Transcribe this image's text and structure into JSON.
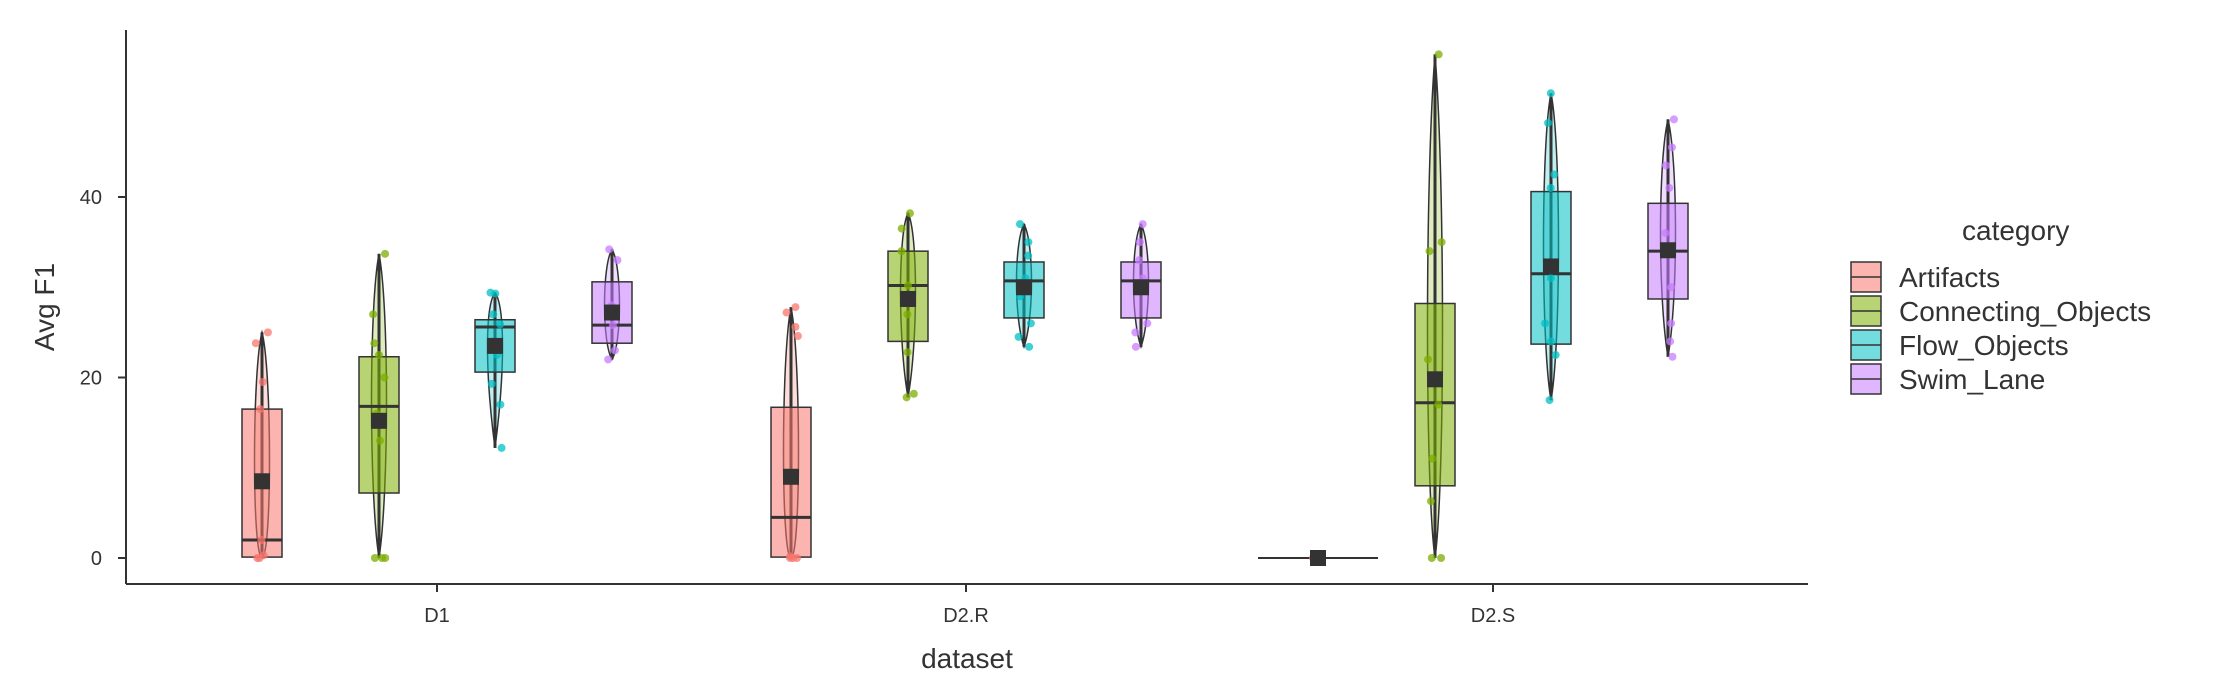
{
  "chart_data": {
    "type": "box",
    "xlabel": "dataset",
    "ylabel": "Avg F1",
    "categories": [
      "D1",
      "D2.R",
      "D2.S"
    ],
    "y_ticks": [
      0,
      20,
      40
    ],
    "ylim": [
      -2.6,
      58.5
    ],
    "grid": false,
    "legend": {
      "title": "category",
      "position": "right",
      "entries": [
        "Artifacts",
        "Connecting_Objects",
        "Flow_Objects",
        "Swim_Lane"
      ]
    },
    "colors": {
      "Artifacts": "#F8766D",
      "Connecting_Objects": "#7CAE00",
      "Flow_Objects": "#00BFC4",
      "Swim_Lane": "#C77CFF"
    },
    "series": [
      {
        "name": "Artifacts",
        "boxes": [
          {
            "dataset": "D1",
            "min": 0,
            "q1": 0.1,
            "median": 2.0,
            "q3": 16.5,
            "max": 25.0,
            "mean": 8.5,
            "points": [
              25.0,
              23.8,
              19.5,
              16.5,
              2.0,
              0.3,
              0.0,
              0.0
            ]
          },
          {
            "dataset": "D2.R",
            "min": 0,
            "q1": 0.1,
            "median": 4.5,
            "q3": 16.7,
            "max": 27.8,
            "mean": 9.0,
            "points": [
              27.8,
              27.2,
              24.6,
              25.6,
              0.2,
              0.0,
              0.0,
              0.0
            ]
          },
          {
            "dataset": "D2.S",
            "min": 0,
            "q1": 0,
            "median": 0,
            "q3": 0,
            "max": 0,
            "mean": 0,
            "points": [
              0.0,
              0.0,
              0.0,
              0.0,
              0.0,
              0.0
            ]
          }
        ]
      },
      {
        "name": "Connecting_Objects",
        "boxes": [
          {
            "dataset": "D1",
            "min": 0,
            "q1": 7.2,
            "median": 16.8,
            "q3": 22.3,
            "max": 33.7,
            "mean": 15.2,
            "points": [
              33.7,
              27.0,
              23.8,
              22.5,
              20.0,
              16.0,
              13.0,
              0.0,
              0.0,
              0.0
            ]
          },
          {
            "dataset": "D2.R",
            "min": 17.8,
            "q1": 24.0,
            "median": 30.2,
            "q3": 34.0,
            "max": 38.2,
            "mean": 28.7,
            "points": [
              38.2,
              36.5,
              34.0,
              30.2,
              27.0,
              22.8,
              18.2,
              17.8
            ]
          },
          {
            "dataset": "D2.S",
            "min": 0,
            "q1": 8.0,
            "median": 17.2,
            "q3": 28.2,
            "max": 55.8,
            "mean": 19.8,
            "points": [
              55.8,
              35.0,
              34.0,
              22.0,
              17.0,
              11.0,
              6.3,
              0.0,
              0.0
            ]
          }
        ]
      },
      {
        "name": "Flow_Objects",
        "boxes": [
          {
            "dataset": "D1",
            "min": 12.2,
            "q1": 20.6,
            "median": 25.6,
            "q3": 26.4,
            "max": 29.4,
            "mean": 23.5,
            "points": [
              29.4,
              29.3,
              27.0,
              25.9,
              22.5,
              19.3,
              17.0,
              12.2
            ]
          },
          {
            "dataset": "D2.R",
            "min": 23.4,
            "q1": 26.6,
            "median": 30.7,
            "q3": 32.8,
            "max": 37.0,
            "mean": 30.0,
            "points": [
              37.0,
              35.0,
              33.5,
              31.0,
              29.0,
              26.0,
              24.5,
              23.4
            ]
          },
          {
            "dataset": "D2.S",
            "min": 17.5,
            "q1": 23.7,
            "median": 31.5,
            "q3": 40.6,
            "max": 51.5,
            "mean": 32.3,
            "points": [
              51.5,
              48.2,
              42.5,
              41.0,
              31.0,
              26.0,
              24.0,
              22.5,
              17.5
            ]
          }
        ]
      },
      {
        "name": "Swim_Lane",
        "boxes": [
          {
            "dataset": "D1",
            "min": 22.0,
            "q1": 23.8,
            "median": 25.8,
            "q3": 30.6,
            "max": 34.2,
            "mean": 27.2,
            "points": [
              34.2,
              33.0,
              28.0,
              25.8,
              23.0,
              22.0
            ]
          },
          {
            "dataset": "D2.R",
            "min": 23.4,
            "q1": 26.6,
            "median": 30.7,
            "q3": 32.8,
            "max": 37.0,
            "mean": 30.0,
            "points": [
              37.0,
              35.0,
              33.0,
              31.0,
              26.0,
              25.0,
              23.4
            ]
          },
          {
            "dataset": "D2.S",
            "min": 22.3,
            "q1": 28.7,
            "median": 34.0,
            "q3": 39.3,
            "max": 48.6,
            "mean": 34.1,
            "points": [
              48.6,
              45.5,
              43.5,
              41.0,
              36.0,
              30.0,
              26.0,
              24.0,
              22.3
            ]
          }
        ]
      }
    ]
  }
}
